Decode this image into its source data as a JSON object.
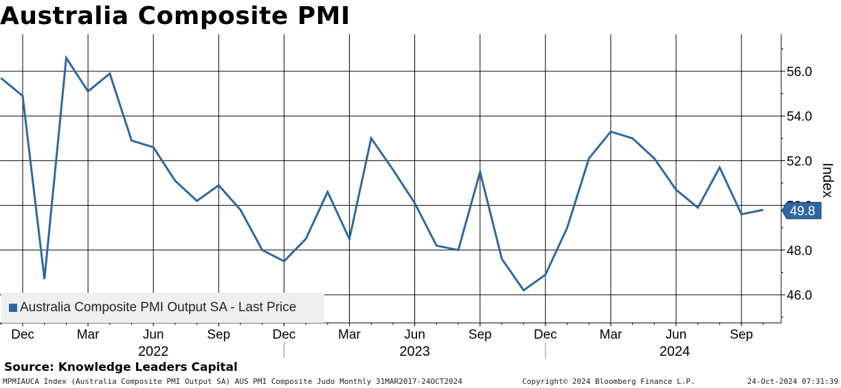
{
  "title": "Australia Composite PMI",
  "legend": "Australia Composite PMI Output SA - Last Price",
  "source": "Source: Knowledge Leaders Capital",
  "footer": {
    "left": "MPMIAUCA Index (Australia Composite PMI Output SA) AUS PMI Composite Judo  Monthly 31MAR2017-24OCT2024",
    "center": "Copyright© 2024 Bloomberg Finance L.P.",
    "right": "24-Oct-2024 07:31:39"
  },
  "last_price_label": "49.8",
  "colors": {
    "line": "#2e66a1",
    "grid": "#000000",
    "legend_bg": "#efefef"
  },
  "chart_data": {
    "type": "line",
    "title": "Australia Composite PMI",
    "ylabel": "Index",
    "ylim": [
      44.7,
      57.4
    ],
    "yticks": [
      46.0,
      48.0,
      50.0,
      52.0,
      54.0,
      56.0
    ],
    "ytick_labels": [
      "46.0",
      "48.0",
      "50.0",
      "52.0",
      "54.0",
      "56.0"
    ],
    "x_month_ticks": [
      "Dec",
      "Mar",
      "Jun",
      "Sep",
      "Dec",
      "Mar",
      "Jun",
      "Sep",
      "Dec",
      "Mar",
      "Jun",
      "Sep"
    ],
    "x_year_labels": [
      "2022",
      "2023",
      "2024"
    ],
    "grid": true,
    "legend_position": "bottom-left",
    "series": [
      {
        "name": "Australia Composite PMI Output SA - Last Price",
        "x": [
          "2021-11",
          "2021-12",
          "2022-01",
          "2022-02",
          "2022-03",
          "2022-04",
          "2022-05",
          "2022-06",
          "2022-07",
          "2022-08",
          "2022-09",
          "2022-10",
          "2022-11",
          "2022-12",
          "2023-01",
          "2023-02",
          "2023-03",
          "2023-04",
          "2023-05",
          "2023-06",
          "2023-07",
          "2023-08",
          "2023-09",
          "2023-10",
          "2023-11",
          "2023-12",
          "2024-01",
          "2024-02",
          "2024-03",
          "2024-04",
          "2024-05",
          "2024-06",
          "2024-07",
          "2024-08",
          "2024-09",
          "2024-10"
        ],
        "values": [
          55.7,
          54.9,
          46.7,
          56.6,
          55.1,
          55.9,
          52.9,
          52.6,
          51.1,
          50.2,
          50.9,
          49.8,
          48.0,
          47.5,
          48.5,
          50.6,
          48.5,
          53.0,
          51.6,
          50.1,
          48.2,
          48.0,
          51.5,
          47.6,
          46.2,
          46.9,
          49.0,
          52.1,
          53.3,
          53.0,
          52.1,
          50.7,
          49.9,
          51.7,
          49.6,
          49.8
        ]
      }
    ]
  }
}
